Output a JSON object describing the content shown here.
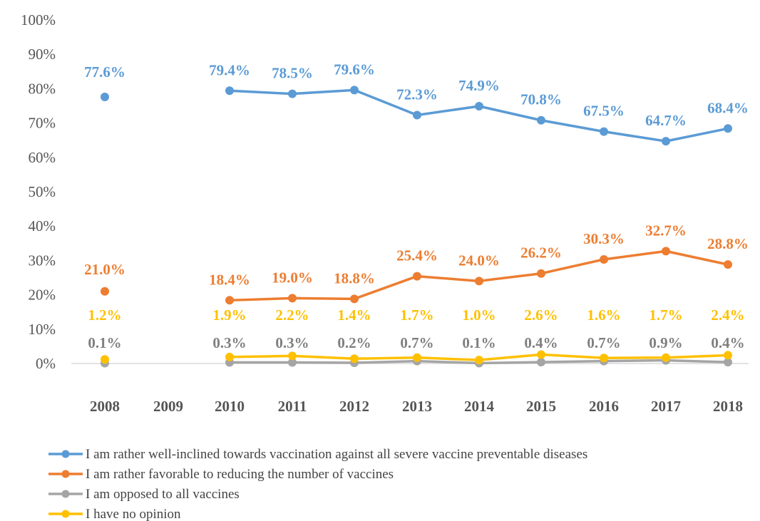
{
  "chart_data": {
    "type": "line",
    "categories": [
      "2008",
      "2009",
      "2010",
      "2011",
      "2012",
      "2013",
      "2014",
      "2015",
      "2016",
      "2017",
      "2018"
    ],
    "yticks": [
      "0%",
      "10%",
      "20%",
      "30%",
      "40%",
      "50%",
      "60%",
      "70%",
      "80%",
      "90%",
      "100%"
    ],
    "ylim": [
      0,
      100
    ],
    "grid": false,
    "legend_position": "bottom-left",
    "series": [
      {
        "name": "I am rather well-inclined towards vaccination against all severe vaccine preventable diseases",
        "color": "#5B9BD5",
        "values": [
          77.6,
          null,
          79.4,
          78.5,
          79.6,
          72.3,
          74.9,
          70.8,
          67.5,
          64.7,
          68.4
        ],
        "labels": [
          "77.6%",
          "",
          "79.4%",
          "78.5%",
          "79.6%",
          "72.3%",
          "74.9%",
          "70.8%",
          "67.5%",
          "64.7%",
          "68.4%"
        ]
      },
      {
        "name": "I am rather favorable to reducing the number of vaccines",
        "color": "#ED7D31",
        "values": [
          21.0,
          null,
          18.4,
          19.0,
          18.8,
          25.4,
          24.0,
          26.2,
          30.3,
          32.7,
          28.8
        ],
        "labels": [
          "21.0%",
          "",
          "18.4%",
          "19.0%",
          "18.8%",
          "25.4%",
          "24.0%",
          "26.2%",
          "30.3%",
          "32.7%",
          "28.8%"
        ]
      },
      {
        "name": "I am opposed to all vaccines",
        "color": "#A5A5A5",
        "values": [
          0.1,
          null,
          0.3,
          0.3,
          0.2,
          0.7,
          0.1,
          0.4,
          0.7,
          0.9,
          0.4
        ],
        "labels": [
          "0.1%",
          "",
          "0.3%",
          "0.3%",
          "0.2%",
          "0.7%",
          "0.1%",
          "0.4%",
          "0.7%",
          "0.9%",
          "0.4%"
        ],
        "label_color": "#7F7F7F"
      },
      {
        "name": "I have no opinion",
        "color": "#FFC000",
        "values": [
          1.2,
          null,
          1.9,
          2.2,
          1.4,
          1.7,
          1.0,
          2.6,
          1.6,
          1.7,
          2.4
        ],
        "labels": [
          "1.2%",
          "",
          "1.9%",
          "2.2%",
          "1.4%",
          "1.7%",
          "1.0%",
          "2.6%",
          "1.6%",
          "1.7%",
          "2.4%"
        ]
      }
    ]
  }
}
